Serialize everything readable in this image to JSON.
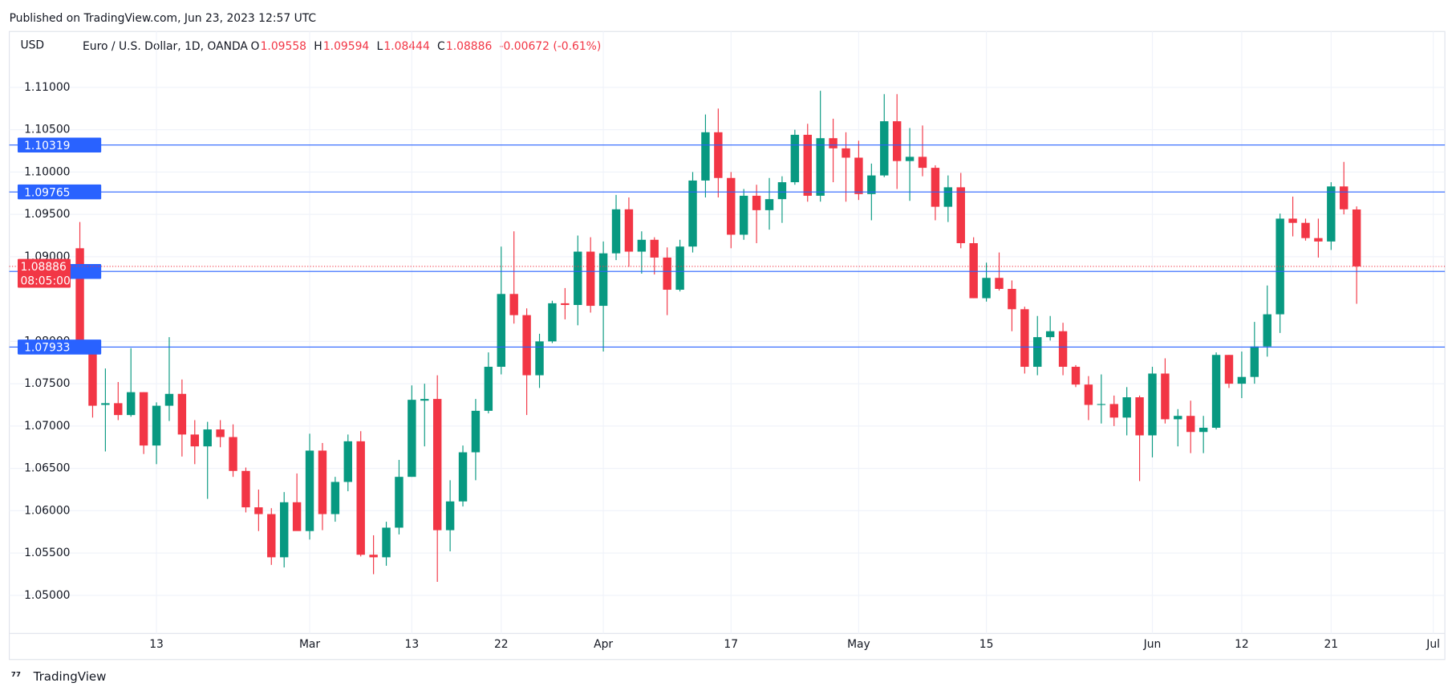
{
  "header": {
    "published": "Published on TradingView.com, Jun 23, 2023 12:57 UTC",
    "brand": "TradingView"
  },
  "chart_data": {
    "type": "candlestick",
    "currency": "USD",
    "title": "Euro / U.S. Dollar, 1D, OANDA",
    "ohlc_legend": [
      {
        "label": "O",
        "value": 1.09558
      },
      {
        "label": "H",
        "value": 1.09594
      },
      {
        "label": "L",
        "value": 1.08444
      },
      {
        "label": "C",
        "value": 1.08886
      }
    ],
    "change": "-0.00672 (-0.61%)",
    "categories": [
      null,
      null,
      null,
      null,
      null,
      null,
      "13",
      null,
      null,
      null,
      null,
      null,
      null,
      null,
      null,
      null,
      null,
      null,
      "Mar",
      null,
      null,
      null,
      null,
      null,
      null,
      null,
      "13",
      null,
      null,
      null,
      null,
      null,
      null,
      "22",
      null,
      null,
      null,
      null,
      null,
      null,
      null,
      "Apr",
      null,
      null,
      null,
      null,
      null,
      null,
      null,
      null,
      null,
      "17",
      null,
      null,
      null,
      null,
      null,
      null,
      null,
      null,
      null,
      "May",
      null,
      null,
      null,
      null,
      null,
      null,
      null,
      null,
      null,
      "15",
      null,
      null,
      null,
      null,
      null,
      null,
      null,
      null,
      null,
      null,
      null,
      null,
      "Jun",
      null,
      null,
      null,
      null,
      null,
      null,
      "12",
      null,
      null,
      null,
      null,
      null,
      null,
      "21",
      null,
      null,
      null,
      null,
      null,
      null,
      null,
      "Jul"
    ],
    "open": [
      1.091,
      1.0795,
      1.0725,
      1.0727,
      1.0713,
      1.074,
      1.0677,
      1.0724,
      1.0738,
      1.069,
      1.0676,
      1.0696,
      1.0687,
      1.0647,
      1.0604,
      1.0596,
      1.0545,
      1.061,
      1.0576,
      1.0671,
      1.0596,
      1.0634,
      1.0682,
      1.0548,
      1.0545,
      1.058,
      1.064,
      1.073,
      1.0732,
      1.0577,
      1.0611,
      1.0669,
      1.0718,
      1.077,
      1.0856,
      1.0831,
      1.076,
      1.08,
      1.0845,
      1.0843,
      1.0906,
      1.0842,
      1.0904,
      1.0956,
      1.0906,
      1.092,
      1.0899,
      1.0861,
      1.0912,
      1.099,
      1.1047,
      1.0993,
      1.0926,
      1.0972,
      1.0955,
      1.0968,
      1.0988,
      1.1044,
      1.0972,
      1.104,
      1.1028,
      1.1017,
      1.0974,
      1.0996,
      1.106,
      1.1013,
      1.1018,
      1.1005,
      1.0959,
      1.0982,
      1.0916,
      1.0851,
      1.0875,
      1.0862,
      1.0838,
      1.077,
      1.0805,
      1.0812,
      1.077,
      1.0749,
      1.0725,
      1.0726,
      1.071,
      1.0734,
      1.0689,
      1.0762,
      1.0708,
      1.0712,
      1.0693,
      1.0698,
      1.0784,
      1.075,
      1.0758,
      1.0794,
      1.0832,
      1.0945,
      1.094,
      1.0922,
      1.0918,
      1.0983,
      1.09558,
      null,
      null,
      null,
      null,
      null,
      null
    ],
    "high": [
      1.0941,
      1.0798,
      1.0768,
      1.0752,
      1.0792,
      1.074,
      1.0728,
      1.0805,
      1.0755,
      1.0707,
      1.0705,
      1.0707,
      1.0702,
      1.0651,
      1.0625,
      1.0603,
      1.0622,
      1.0644,
      1.0691,
      1.068,
      1.064,
      1.069,
      1.0694,
      1.0571,
      1.0587,
      1.066,
      1.0748,
      1.075,
      1.076,
      1.0636,
      1.0677,
      1.0732,
      1.0787,
      1.0912,
      1.093,
      1.0839,
      1.0809,
      1.0848,
      1.0863,
      1.0925,
      1.0923,
      1.0918,
      1.0973,
      1.097,
      1.093,
      1.0923,
      1.0911,
      1.092,
      1.1,
      1.1068,
      1.1075,
      1.1,
      1.098,
      1.0985,
      1.0993,
      1.0995,
      1.105,
      1.1057,
      1.1096,
      1.1063,
      1.1047,
      1.1037,
      1.101,
      1.1092,
      1.1092,
      1.1052,
      1.1055,
      1.1008,
      1.0996,
      1.0999,
      1.0923,
      1.0893,
      1.0905,
      1.0872,
      1.0841,
      1.083,
      1.083,
      1.0822,
      1.0772,
      1.0759,
      1.0761,
      1.0736,
      1.0746,
      1.0736,
      1.077,
      1.078,
      1.072,
      1.073,
      1.0712,
      1.0787,
      1.0784,
      1.0788,
      1.0823,
      1.0866,
      1.0951,
      1.0971,
      1.0945,
      1.0945,
      1.0988,
      1.1012,
      1.09594,
      null,
      null,
      null,
      null,
      null,
      null
    ],
    "low": [
      1.0793,
      1.071,
      1.067,
      1.0707,
      1.0711,
      1.0667,
      1.0655,
      1.0706,
      1.0664,
      1.0655,
      1.0614,
      1.0675,
      1.064,
      1.0598,
      1.0576,
      1.0536,
      1.0533,
      1.0577,
      1.0566,
      1.0577,
      1.0587,
      1.0623,
      1.0546,
      1.0525,
      1.0535,
      1.0572,
      1.064,
      1.0676,
      1.0516,
      1.0552,
      1.0605,
      1.0636,
      1.0715,
      1.0761,
      1.0821,
      1.0713,
      1.0745,
      1.0798,
      1.0826,
      1.0819,
      1.0834,
      1.0788,
      1.0896,
      1.0888,
      1.088,
      1.0879,
      1.0831,
      1.0859,
      1.0905,
      1.097,
      1.097,
      1.091,
      1.092,
      1.0916,
      1.0932,
      1.094,
      1.0985,
      1.0965,
      1.0965,
      1.0988,
      1.0965,
      1.0967,
      1.0943,
      1.0994,
      1.098,
      1.0966,
      1.0995,
      1.0943,
      1.0941,
      1.091,
      1.0851,
      1.0847,
      1.086,
      1.0812,
      1.0762,
      1.076,
      1.0801,
      1.076,
      1.0746,
      1.0707,
      1.0703,
      1.07,
      1.0689,
      1.0635,
      1.0663,
      1.0703,
      1.0676,
      1.0668,
      1.0668,
      1.0696,
      1.0745,
      1.0733,
      1.075,
      1.0782,
      1.081,
      1.0924,
      1.0919,
      1.0899,
      1.0908,
      1.095,
      1.08444,
      null,
      null,
      null,
      null,
      null,
      null
    ],
    "close": [
      1.0796,
      1.0724,
      1.0727,
      1.0713,
      1.074,
      1.0677,
      1.0724,
      1.0738,
      1.069,
      1.0676,
      1.0696,
      1.0687,
      1.0647,
      1.0604,
      1.0596,
      1.0545,
      1.061,
      1.0576,
      1.0671,
      1.0596,
      1.0634,
      1.0682,
      1.0548,
      1.0545,
      1.058,
      1.064,
      1.0731,
      1.0732,
      1.0577,
      1.0611,
      1.0669,
      1.0718,
      1.077,
      1.0856,
      1.0831,
      1.076,
      1.08,
      1.0845,
      1.0843,
      1.0906,
      1.0842,
      1.0904,
      1.0956,
      1.0906,
      1.092,
      1.0899,
      1.0861,
      1.0912,
      1.099,
      1.1047,
      1.0993,
      1.0926,
      1.0972,
      1.0955,
      1.0968,
      1.0988,
      1.1044,
      1.0972,
      1.104,
      1.1028,
      1.1017,
      1.0974,
      1.0996,
      1.106,
      1.1013,
      1.1018,
      1.1005,
      1.0959,
      1.0982,
      1.0916,
      1.0851,
      1.0875,
      1.0862,
      1.0838,
      1.077,
      1.0805,
      1.0812,
      1.077,
      1.0749,
      1.0725,
      1.0726,
      1.071,
      1.0734,
      1.0689,
      1.0762,
      1.0708,
      1.0712,
      1.0693,
      1.0698,
      1.0784,
      1.075,
      1.0758,
      1.0794,
      1.0832,
      1.0945,
      1.094,
      1.0922,
      1.0918,
      1.0983,
      1.0956,
      1.08886,
      null,
      null,
      null,
      null,
      null,
      null
    ],
    "up_color": "#089981",
    "down_color": "#f23645",
    "ylim": [
      1.0455,
      1.1166
    ],
    "yticks": [
      {
        "value": 1.05,
        "label": "1.05000"
      },
      {
        "value": 1.055,
        "label": "1.05500"
      },
      {
        "value": 1.06,
        "label": "1.06000"
      },
      {
        "value": 1.065,
        "label": "1.06500"
      },
      {
        "value": 1.07,
        "label": "1.07000"
      },
      {
        "value": 1.075,
        "label": "1.07500"
      },
      {
        "value": 1.08,
        "label": "1.08000"
      },
      {
        "value": 1.09,
        "label": "1.09000"
      },
      {
        "value": 1.095,
        "label": "1.09500"
      },
      {
        "value": 1.1,
        "label": "1.10000"
      },
      {
        "value": 1.105,
        "label": "1.10500"
      },
      {
        "value": 1.11,
        "label": "1.11000"
      }
    ],
    "grid": true,
    "levels": [
      1.10319,
      1.09765,
      1.08826,
      1.07933
    ],
    "level_color": "#2962ff",
    "last_price": 1.08886,
    "countdown": "08:05:00"
  }
}
